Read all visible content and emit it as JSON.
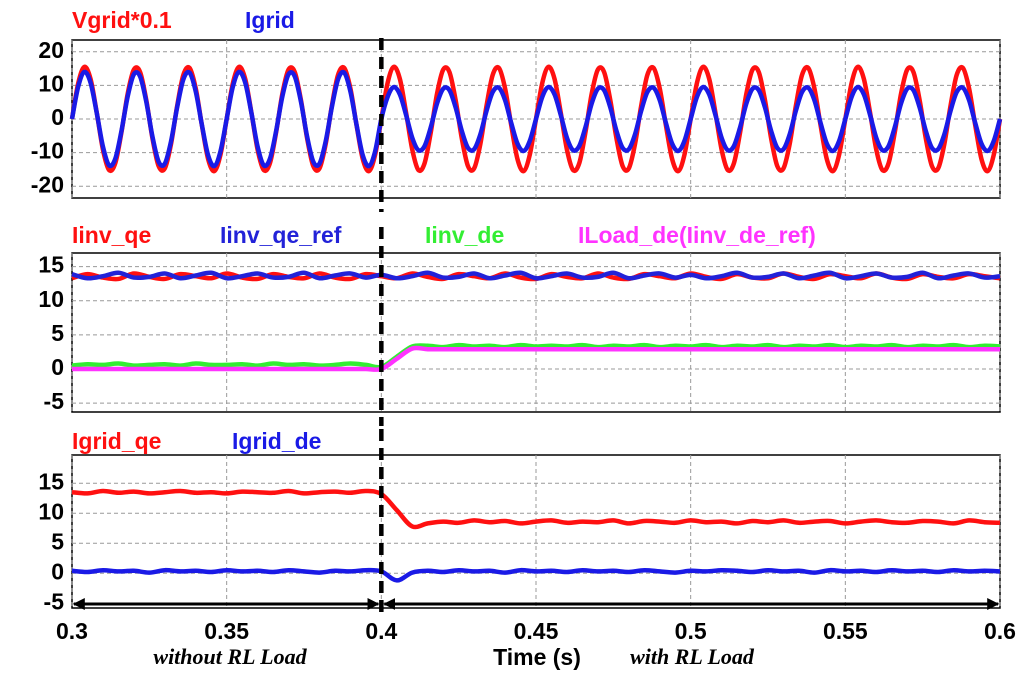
{
  "chart_data": [
    {
      "type": "line",
      "series": [
        {
          "name": "Vgrid*0.1",
          "color": "#ff1010",
          "values": [
            0,
            10.6,
            15.5,
            11.9,
            1.9,
            -9.1,
            -15.2,
            -13.1,
            -3.9,
            7.5,
            14.7,
            14.0,
            5.7,
            -5.7,
            -14.0,
            -14.7,
            -7.5,
            3.9,
            13.1,
            15.2,
            9.1,
            -1.9,
            -11.9,
            -15.5,
            -10.6,
            0,
            10.6,
            15.5,
            11.9,
            1.9,
            -9.1,
            -15.2,
            -13.1,
            -3.9,
            7.5,
            14.7,
            14.0,
            5.7,
            -5.7,
            -14.0,
            -14.7,
            -7.5,
            3.9,
            13.1,
            15.2,
            9.1,
            -1.9,
            -11.9,
            -15.5,
            -10.6,
            0,
            10.6,
            15.5,
            11.9,
            1.9,
            -9.1,
            -15.2,
            -13.1,
            -3.9,
            7.5,
            14.7,
            14.0,
            5.7,
            -5.7,
            -14.0,
            -14.7,
            -7.5,
            3.9,
            13.1,
            15.2,
            9.1,
            -1.9,
            -11.9,
            -15.5,
            -10.6,
            0,
            10.6,
            15.5,
            11.9,
            1.9,
            -9.1,
            -15.2,
            -13.1,
            -3.9,
            7.5,
            14.7,
            14.0,
            5.7,
            -5.7,
            -14.0,
            -14.7,
            -7.5,
            3.9,
            13.1,
            15.2,
            9.1,
            -1.9,
            -11.9,
            -15.5,
            -10.6,
            0,
            10.6,
            15.5,
            11.9,
            1.9,
            -9.1,
            -15.2,
            -13.1,
            -3.9,
            7.5,
            14.7,
            14.0,
            5.7,
            -5.7,
            -14.0,
            -14.7,
            -7.5,
            3.9,
            13.1,
            15.2,
            9.1,
            -1.9,
            -11.9,
            -15.5,
            -10.6,
            0,
            10.6,
            15.5,
            11.9,
            1.9,
            -9.1,
            -15.2,
            -13.1,
            -3.9,
            7.5,
            14.7,
            14.0,
            5.7,
            -5.7,
            -14.0,
            -14.7,
            -7.5,
            3.9,
            13.1,
            15.2,
            9.1,
            -1.9,
            -11.9,
            -15.5,
            -10.6,
            0
          ]
        },
        {
          "name": "Igrid",
          "color": "#1a1ae6",
          "values": [
            0,
            9.6,
            14.0,
            10.8,
            1.8,
            -8.2,
            -13.8,
            -11.8,
            -3.5,
            6.7,
            13.3,
            12.7,
            5.2,
            -5.2,
            -12.7,
            -13.3,
            -6.7,
            3.5,
            11.8,
            13.8,
            8.2,
            -1.8,
            -10.8,
            -14.0,
            -9.6,
            0,
            9.6,
            14.0,
            10.8,
            1.8,
            -8.2,
            -13.8,
            -11.8,
            -3.5,
            6.7,
            13.3,
            12.7,
            5.2,
            -5.2,
            -12.7,
            -13.3,
            -6.7,
            3.5,
            11.8,
            13.8,
            8.2,
            -1.8,
            -10.8,
            -14.0,
            -9.6,
            0,
            6.5,
            9.5,
            7.3,
            1.2,
            -5.6,
            -9.3,
            -8.0,
            -2.4,
            4.6,
            9.0,
            8.6,
            3.5,
            -3.5,
            -8.6,
            -9.0,
            -4.6,
            2.4,
            8.0,
            9.3,
            5.6,
            -1.2,
            -7.3,
            -9.5,
            -6.5,
            0,
            6.5,
            9.5,
            7.3,
            1.2,
            -5.6,
            -9.3,
            -8.0,
            -2.4,
            4.6,
            9.0,
            8.6,
            3.5,
            -3.5,
            -8.6,
            -9.0,
            -4.6,
            2.4,
            8.0,
            9.3,
            5.6,
            -1.2,
            -7.3,
            -9.5,
            -6.5,
            0,
            6.5,
            9.5,
            7.3,
            1.2,
            -5.6,
            -9.3,
            -8.0,
            -2.4,
            4.6,
            9.0,
            8.6,
            3.5,
            -3.5,
            -8.6,
            -9.0,
            -4.6,
            2.4,
            8.0,
            9.3,
            5.6,
            -1.2,
            -7.3,
            -9.5,
            -6.5,
            0,
            6.5,
            9.5,
            7.3,
            1.2,
            -5.6,
            -9.3,
            -8.0,
            -2.4,
            4.6,
            9.0,
            8.6,
            3.5,
            -3.5,
            -8.6,
            -9.0,
            -4.6,
            2.4,
            8.0,
            9.3,
            5.6,
            -1.2,
            -7.3,
            -9.5,
            -6.5,
            0
          ]
        }
      ],
      "x": [
        0.3,
        0.302,
        0.304,
        0.306,
        0.308,
        0.31,
        0.312,
        0.314,
        0.316,
        0.318,
        0.32,
        0.322,
        0.324,
        0.326,
        0.328,
        0.33,
        0.332,
        0.334,
        0.336,
        0.338,
        0.34,
        0.342,
        0.344,
        0.346,
        0.348,
        0.35,
        0.352,
        0.354,
        0.356,
        0.358,
        0.36,
        0.362,
        0.364,
        0.366,
        0.368,
        0.37,
        0.372,
        0.374,
        0.376,
        0.378,
        0.38,
        0.382,
        0.384,
        0.386,
        0.388,
        0.39,
        0.392,
        0.394,
        0.396,
        0.398,
        0.4,
        0.402,
        0.404,
        0.406,
        0.408,
        0.41,
        0.412,
        0.414,
        0.416,
        0.418,
        0.42,
        0.422,
        0.424,
        0.426,
        0.428,
        0.43,
        0.432,
        0.434,
        0.436,
        0.438,
        0.44,
        0.442,
        0.444,
        0.446,
        0.448,
        0.45,
        0.452,
        0.454,
        0.456,
        0.458,
        0.46,
        0.462,
        0.464,
        0.466,
        0.468,
        0.47,
        0.472,
        0.474,
        0.476,
        0.478,
        0.48,
        0.482,
        0.484,
        0.486,
        0.488,
        0.49,
        0.492,
        0.494,
        0.496,
        0.498,
        0.5,
        0.502,
        0.504,
        0.506,
        0.508,
        0.51,
        0.512,
        0.514,
        0.516,
        0.518,
        0.52,
        0.522,
        0.524,
        0.526,
        0.528,
        0.53,
        0.532,
        0.534,
        0.536,
        0.538,
        0.54,
        0.542,
        0.544,
        0.546,
        0.548,
        0.55,
        0.552,
        0.554,
        0.556,
        0.558,
        0.56,
        0.562,
        0.564,
        0.566,
        0.568,
        0.57,
        0.572,
        0.574,
        0.576,
        0.578,
        0.58,
        0.582,
        0.584,
        0.586,
        0.588,
        0.59,
        0.592,
        0.594,
        0.596,
        0.598,
        0.6
      ],
      "xlim": [
        0.3,
        0.6
      ],
      "xticks": [
        0.3,
        0.35,
        0.4,
        0.45,
        0.5,
        0.55,
        0.6
      ],
      "ylim": [
        -23.5,
        23.5
      ],
      "yticks": [
        -20,
        -10,
        0,
        10,
        20
      ],
      "grid": true,
      "vline": 0.4
    },
    {
      "type": "line",
      "series": [
        {
          "name": "Iinv_qe",
          "color": "#ff1010",
          "values": [
            13.3,
            13.9,
            13.4,
            13.2,
            14.0,
            13.5,
            13.2,
            13.9,
            13.6,
            13.3,
            14.0,
            13.4,
            13.2,
            13.9,
            13.5,
            13.3,
            14.0,
            13.4,
            13.2,
            13.9,
            13.6,
            13.3,
            14.0,
            13.5,
            13.2,
            13.9,
            13.6,
            13.3,
            14.0,
            13.4,
            13.2,
            13.9,
            13.5,
            13.3,
            14.0,
            13.4,
            13.2,
            13.9,
            13.6,
            13.3,
            14.0,
            13.5,
            13.2,
            13.9,
            13.4,
            13.3,
            14.0,
            13.5,
            13.2,
            13.9,
            13.6,
            13.3,
            14.0,
            13.4,
            13.2,
            13.9,
            13.5,
            13.3,
            13.9,
            13.6,
            13.3
          ]
        },
        {
          "name": "Iinv_qe_ref",
          "color": "#2222d8",
          "values": [
            13.9,
            13.3,
            13.6,
            14.1,
            13.4,
            13.5,
            14.0,
            13.3,
            13.7,
            14.1,
            13.3,
            13.6,
            14.0,
            13.4,
            13.5,
            14.1,
            13.3,
            13.7,
            14.0,
            13.4,
            13.8,
            13.3,
            13.6,
            14.1,
            13.4,
            13.5,
            14.0,
            13.3,
            13.7,
            14.1,
            13.3,
            13.6,
            14.0,
            13.4,
            13.5,
            14.1,
            13.3,
            13.7,
            14.0,
            13.4,
            13.8,
            13.3,
            13.6,
            14.1,
            13.4,
            13.5,
            14.0,
            13.3,
            13.7,
            14.1,
            13.3,
            13.6,
            14.0,
            13.4,
            13.5,
            14.1,
            13.3,
            13.7,
            14.0,
            13.4,
            13.6
          ]
        },
        {
          "name": "Iinv_de",
          "color": "#33ee33",
          "values": [
            0.5,
            0.7,
            0.6,
            0.8,
            0.5,
            0.6,
            0.7,
            0.5,
            0.8,
            0.6,
            0.6,
            0.7,
            0.5,
            0.8,
            0.6,
            0.7,
            0.5,
            0.6,
            0.8,
            0.6,
            0.3,
            1.8,
            3.3,
            3.4,
            3.2,
            3.5,
            3.3,
            3.4,
            3.2,
            3.5,
            3.3,
            3.4,
            3.3,
            3.5,
            3.2,
            3.4,
            3.3,
            3.5,
            3.2,
            3.4,
            3.3,
            3.5,
            3.2,
            3.4,
            3.3,
            3.5,
            3.2,
            3.4,
            3.3,
            3.5,
            3.2,
            3.4,
            3.3,
            3.5,
            3.2,
            3.4,
            3.3,
            3.5,
            3.2,
            3.4,
            3.3
          ]
        },
        {
          "name": "ILoad_de(Iinv_de_ref)",
          "color": "#ff33ff",
          "values": [
            0,
            0,
            0,
            0,
            0,
            0,
            0,
            0,
            0,
            0,
            0,
            0,
            0,
            0,
            0,
            0,
            0,
            0,
            0,
            0,
            0,
            1.5,
            3.0,
            2.9,
            2.9,
            2.9,
            2.9,
            2.9,
            2.9,
            2.9,
            2.9,
            2.9,
            2.9,
            2.9,
            2.9,
            2.9,
            2.9,
            2.9,
            2.9,
            2.9,
            2.9,
            2.9,
            2.9,
            2.9,
            2.9,
            2.9,
            2.9,
            2.9,
            2.9,
            2.9,
            2.9,
            2.9,
            2.9,
            2.9,
            2.9,
            2.9,
            2.9,
            2.9,
            2.9,
            2.9,
            2.9
          ]
        }
      ],
      "x": [
        0.3,
        0.305,
        0.31,
        0.315,
        0.32,
        0.325,
        0.33,
        0.335,
        0.34,
        0.345,
        0.35,
        0.355,
        0.36,
        0.365,
        0.37,
        0.375,
        0.38,
        0.385,
        0.39,
        0.395,
        0.4,
        0.405,
        0.41,
        0.415,
        0.42,
        0.425,
        0.43,
        0.435,
        0.44,
        0.445,
        0.45,
        0.455,
        0.46,
        0.465,
        0.47,
        0.475,
        0.48,
        0.485,
        0.49,
        0.495,
        0.5,
        0.505,
        0.51,
        0.515,
        0.52,
        0.525,
        0.53,
        0.535,
        0.54,
        0.545,
        0.55,
        0.555,
        0.56,
        0.565,
        0.57,
        0.575,
        0.58,
        0.585,
        0.59,
        0.595,
        0.6
      ],
      "xlim": [
        0.3,
        0.6
      ],
      "xticks": [
        0.3,
        0.35,
        0.4,
        0.45,
        0.5,
        0.55,
        0.6
      ],
      "ylim": [
        -6.3,
        17
      ],
      "yticks": [
        -5,
        0,
        5,
        10,
        15
      ],
      "grid": true,
      "vline": 0.4
    },
    {
      "type": "line",
      "series": [
        {
          "name": "Igrid_qe",
          "color": "#ff1010",
          "values": [
            13.5,
            13.3,
            13.7,
            13.4,
            13.6,
            13.3,
            13.5,
            13.7,
            13.4,
            13.5,
            13.3,
            13.6,
            13.5,
            13.4,
            13.7,
            13.3,
            13.5,
            13.6,
            13.4,
            13.7,
            13.2,
            10.5,
            7.8,
            8.3,
            8.6,
            8.4,
            8.8,
            8.5,
            8.7,
            8.3,
            8.6,
            8.8,
            8.4,
            8.6,
            8.5,
            8.8,
            8.3,
            8.7,
            8.6,
            8.4,
            8.8,
            8.5,
            8.6,
            8.3,
            8.7,
            8.5,
            8.8,
            8.4,
            8.6,
            8.7,
            8.3,
            8.6,
            8.8,
            8.5,
            8.4,
            8.7,
            8.6,
            8.3,
            8.8,
            8.5,
            8.4
          ]
        },
        {
          "name": "Igrid_de",
          "color": "#1a1ae6",
          "values": [
            0.4,
            0.2,
            0.5,
            0.3,
            0.4,
            0.1,
            0.5,
            0.3,
            0.4,
            0.2,
            0.5,
            0.3,
            0.4,
            0.2,
            0.5,
            0.3,
            0.1,
            0.4,
            0.3,
            0.5,
            0.3,
            -1.2,
            0.1,
            0.4,
            0.2,
            0.5,
            0.3,
            0.4,
            0.1,
            0.5,
            0.3,
            0.4,
            0.2,
            0.5,
            0.3,
            0.4,
            0.2,
            0.5,
            0.3,
            0.1,
            0.4,
            0.3,
            0.5,
            0.4,
            0.2,
            0.5,
            0.3,
            0.4,
            0.1,
            0.5,
            0.3,
            0.4,
            0.2,
            0.5,
            0.3,
            0.4,
            0.2,
            0.5,
            0.3,
            0.4,
            0.3
          ]
        }
      ],
      "x": [
        0.3,
        0.305,
        0.31,
        0.315,
        0.32,
        0.325,
        0.33,
        0.335,
        0.34,
        0.345,
        0.35,
        0.355,
        0.36,
        0.365,
        0.37,
        0.375,
        0.38,
        0.385,
        0.39,
        0.395,
        0.4,
        0.405,
        0.41,
        0.415,
        0.42,
        0.425,
        0.43,
        0.435,
        0.44,
        0.445,
        0.45,
        0.455,
        0.46,
        0.465,
        0.47,
        0.475,
        0.48,
        0.485,
        0.49,
        0.495,
        0.5,
        0.505,
        0.51,
        0.515,
        0.52,
        0.525,
        0.53,
        0.535,
        0.54,
        0.545,
        0.55,
        0.555,
        0.56,
        0.565,
        0.57,
        0.575,
        0.58,
        0.585,
        0.59,
        0.595,
        0.6
      ],
      "xlim": [
        0.3,
        0.6
      ],
      "xticks": [
        0.3,
        0.35,
        0.4,
        0.45,
        0.5,
        0.55,
        0.6
      ],
      "xlabel": "Time (s)",
      "annotations": [
        "without RL Load",
        "with RL Load"
      ],
      "ylim": [
        -5.8,
        19.7
      ],
      "yticks": [
        -5,
        0,
        5,
        10,
        15
      ],
      "grid": true,
      "vline": 0.4
    }
  ]
}
